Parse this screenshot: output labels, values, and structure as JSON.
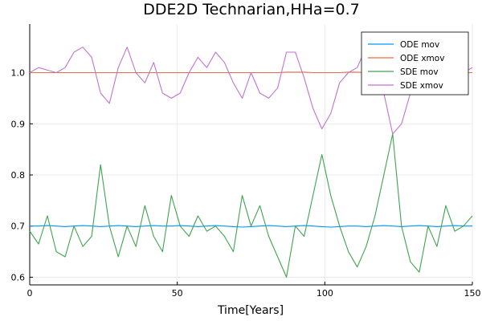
{
  "chart_data": {
    "type": "line",
    "title": "DDE2D Technarian,HHa=0.7",
    "xlabel": "Time[Years]",
    "ylabel": "",
    "xlim": [
      0,
      150
    ],
    "ylim": [
      0.585,
      1.095
    ],
    "xticks": [
      0,
      50,
      100,
      150
    ],
    "yticks": [
      0.6,
      0.7,
      0.8,
      0.9,
      1.0
    ],
    "xtick_labels": [
      "0",
      "50",
      "100",
      "150"
    ],
    "ytick_labels": [
      "0.6",
      "0.7",
      "0.8",
      "0.9",
      "1.0"
    ],
    "grid": true,
    "legend_position": "top-right",
    "x": [
      0,
      3,
      6,
      9,
      12,
      15,
      18,
      21,
      24,
      27,
      30,
      33,
      36,
      39,
      42,
      45,
      48,
      51,
      54,
      57,
      60,
      63,
      66,
      69,
      72,
      75,
      78,
      81,
      84,
      87,
      90,
      93,
      96,
      99,
      102,
      105,
      108,
      111,
      114,
      117,
      120,
      123,
      126,
      129,
      132,
      135,
      138,
      141,
      144,
      147,
      150
    ],
    "series": [
      {
        "name": "ODE mov",
        "color": "#009AFA",
        "values": [
          0.7,
          0.7,
          0.701,
          0.7,
          0.699,
          0.7,
          0.701,
          0.7,
          0.699,
          0.7,
          0.701,
          0.7,
          0.699,
          0.7,
          0.701,
          0.7,
          0.7,
          0.701,
          0.7,
          0.699,
          0.7,
          0.701,
          0.7,
          0.699,
          0.698,
          0.699,
          0.7,
          0.701,
          0.7,
          0.699,
          0.7,
          0.701,
          0.7,
          0.699,
          0.698,
          0.699,
          0.7,
          0.7,
          0.699,
          0.7,
          0.701,
          0.7,
          0.699,
          0.7,
          0.701,
          0.7,
          0.699,
          0.7,
          0.701,
          0.7,
          0.7
        ]
      },
      {
        "name": "ODE xmov",
        "color": "#E36F47",
        "values": [
          1.0,
          1.0,
          1.0,
          1.0,
          1.0,
          1.0,
          1.0,
          1.0,
          1.0,
          1.0,
          1.0,
          1.0,
          1.0,
          1.0,
          1.0,
          1.0,
          1.0,
          1.0,
          1.0,
          1.0,
          1.0,
          1.0,
          1.0,
          1.0,
          1.0,
          1.0,
          1.0,
          1.0,
          1.0,
          1.001,
          1.001,
          1.001,
          1.0,
          1.0,
          1.0,
          1.0,
          1.001,
          1.001,
          1.0,
          1.0,
          1.0,
          1.0,
          1.0,
          1.001,
          1.001,
          1.0,
          1.0,
          1.0,
          1.0,
          1.0,
          1.0
        ]
      },
      {
        "name": "SDE mov",
        "color": "#3EA44E",
        "values": [
          0.69,
          0.665,
          0.72,
          0.65,
          0.64,
          0.7,
          0.66,
          0.68,
          0.82,
          0.7,
          0.64,
          0.7,
          0.66,
          0.74,
          0.68,
          0.65,
          0.76,
          0.7,
          0.68,
          0.72,
          0.69,
          0.7,
          0.68,
          0.65,
          0.76,
          0.7,
          0.74,
          0.68,
          0.64,
          0.6,
          0.7,
          0.68,
          0.76,
          0.84,
          0.76,
          0.7,
          0.65,
          0.62,
          0.66,
          0.72,
          0.8,
          0.88,
          0.7,
          0.63,
          0.61,
          0.7,
          0.66,
          0.74,
          0.69,
          0.7,
          0.72
        ]
      },
      {
        "name": "SDE xmov",
        "color": "#C271D2",
        "values": [
          1.0,
          1.01,
          1.005,
          1.0,
          1.01,
          1.04,
          1.05,
          1.03,
          0.96,
          0.94,
          1.01,
          1.05,
          1.0,
          0.98,
          1.02,
          0.96,
          0.95,
          0.96,
          1.0,
          1.03,
          1.01,
          1.04,
          1.02,
          0.98,
          0.95,
          1.0,
          0.96,
          0.95,
          0.97,
          1.04,
          1.04,
          0.99,
          0.93,
          0.89,
          0.92,
          0.98,
          1.0,
          1.01,
          1.05,
          1.07,
          0.96,
          0.88,
          0.9,
          0.96,
          1.02,
          1.04,
          1.01,
          1.0,
          1.02,
          1.0,
          1.01
        ]
      }
    ]
  }
}
